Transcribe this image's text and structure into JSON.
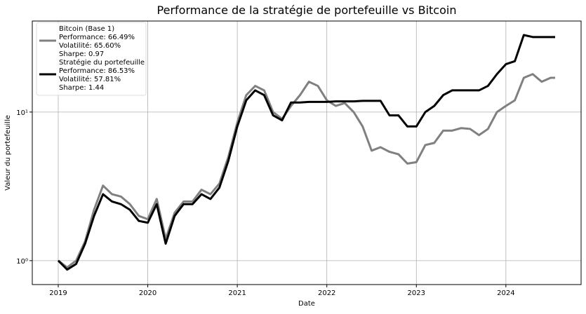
{
  "chart_data": {
    "type": "line",
    "title": "Performance de la stratégie de portefeuille vs Bitcoin",
    "xlabel": "Date",
    "ylabel": "Valeur du portefeuille",
    "x": [
      2019.0,
      2019.1,
      2019.2,
      2019.3,
      2019.4,
      2019.5,
      2019.6,
      2019.7,
      2019.8,
      2019.9,
      2020.0,
      2020.1,
      2020.2,
      2020.3,
      2020.4,
      2020.5,
      2020.6,
      2020.7,
      2020.8,
      2020.9,
      2021.0,
      2021.1,
      2021.2,
      2021.3,
      2021.4,
      2021.5,
      2021.6,
      2021.7,
      2021.8,
      2021.9,
      2022.0,
      2022.1,
      2022.2,
      2022.3,
      2022.4,
      2022.5,
      2022.6,
      2022.7,
      2022.8,
      2022.9,
      2023.0,
      2023.1,
      2023.2,
      2023.3,
      2023.4,
      2023.5,
      2023.6,
      2023.7,
      2023.8,
      2023.9,
      2024.0,
      2024.1,
      2024.2,
      2024.3,
      2024.4,
      2024.5,
      2024.55
    ],
    "series": [
      {
        "name": "Bitcoin (Base 1)",
        "stats": [
          "Performance: 66.49%",
          "Volatilité: 65.60%",
          "Sharpe: 0.97"
        ],
        "color": "#808080",
        "values": [
          1.0,
          0.9,
          1.0,
          1.35,
          2.2,
          3.2,
          2.8,
          2.7,
          2.4,
          2.0,
          1.9,
          2.6,
          1.4,
          2.1,
          2.5,
          2.5,
          3.0,
          2.8,
          3.3,
          5.0,
          8.5,
          13,
          15,
          14,
          10,
          9,
          11,
          13,
          16,
          15,
          12,
          11,
          11.5,
          10,
          8,
          5.5,
          5.8,
          5.4,
          5.2,
          4.5,
          4.6,
          6.0,
          6.2,
          7.5,
          7.5,
          7.8,
          7.7,
          7.0,
          7.7,
          10,
          11,
          12,
          17,
          18,
          16,
          17,
          17
        ]
      },
      {
        "name": "Stratégie du portefeuille",
        "stats": [
          "Performance: 86.53%",
          "Volatilité: 57.81%",
          "Sharpe: 1.44"
        ],
        "color": "#000000",
        "values": [
          1.0,
          0.87,
          0.95,
          1.3,
          2.0,
          2.8,
          2.5,
          2.4,
          2.2,
          1.85,
          1.8,
          2.4,
          1.3,
          2.0,
          2.4,
          2.4,
          2.8,
          2.6,
          3.1,
          4.7,
          8.0,
          12,
          14,
          13,
          9.5,
          8.8,
          11.6,
          11.6,
          11.7,
          11.7,
          11.7,
          11.8,
          11.8,
          11.8,
          11.9,
          11.9,
          11.9,
          9.5,
          9.5,
          8.0,
          8.0,
          10,
          11,
          13,
          14,
          14,
          14,
          14,
          15,
          18,
          21,
          22,
          33,
          32,
          32,
          32,
          32
        ]
      }
    ],
    "xlim": [
      2018.71,
      2024.84
    ],
    "xticks": [
      2019,
      2020,
      2021,
      2022,
      2023,
      2024
    ],
    "ylim": [
      0.69,
      41
    ],
    "yticks": [
      {
        "value": 1,
        "label": "10⁰"
      },
      {
        "value": 10,
        "label": "10¹"
      }
    ],
    "log_y": true,
    "grid": true,
    "legend": "upper left"
  }
}
